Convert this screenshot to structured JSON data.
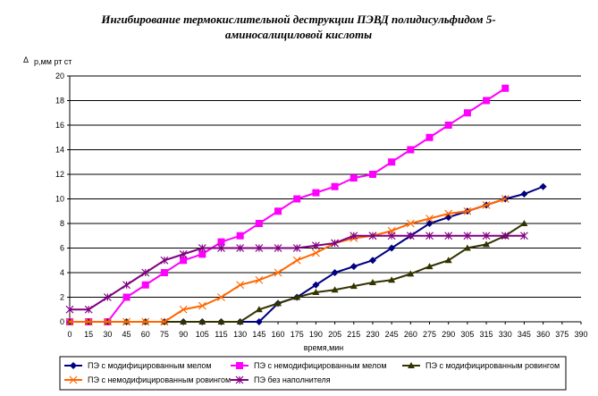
{
  "chart_data": {
    "type": "line",
    "title_line1": "Ингибирование термокислительной деструкции ПЭВД полидисульфидом 5-",
    "title_line2": "аминосалициловой кислоты",
    "ylabel_symbol": "Δ",
    "ylabel": "р,мм рт ст",
    "xlabel": "время,мин",
    "x": [
      0,
      15,
      30,
      45,
      60,
      75,
      90,
      105,
      115,
      130,
      145,
      160,
      175,
      190,
      205,
      215,
      230,
      245,
      260,
      275,
      290,
      305,
      315,
      330,
      345,
      360,
      375
    ],
    "x_ticks": [
      0,
      15,
      30,
      45,
      60,
      75,
      90,
      105,
      115,
      130,
      145,
      160,
      175,
      190,
      205,
      215,
      230,
      245,
      260,
      275,
      290,
      305,
      315,
      330,
      345,
      360,
      375,
      390
    ],
    "ylim": [
      0,
      20
    ],
    "y_ticks": [
      0,
      2,
      4,
      6,
      8,
      10,
      12,
      14,
      16,
      18,
      20
    ],
    "grid": "horizontal",
    "legend_position": "bottom",
    "series": [
      {
        "name": "ПЭ с модифицированным мелом",
        "color": "#000080",
        "marker": "diamond",
        "values": [
          0,
          0,
          0,
          0,
          0,
          0,
          0,
          0,
          0,
          0,
          0,
          1.5,
          2,
          3,
          4,
          4.5,
          5,
          6,
          7,
          8,
          8.5,
          9,
          9.5,
          10,
          10.4,
          11,
          null
        ]
      },
      {
        "name": "ПЭ с немодифицированным мелом",
        "color": "#ff00ff",
        "marker": "square",
        "values": [
          0,
          0,
          0,
          2,
          3,
          4,
          5,
          5.5,
          6.5,
          7,
          8,
          9,
          10,
          10.5,
          11,
          11.7,
          12,
          13,
          14,
          15,
          16,
          17,
          18,
          19,
          null,
          null,
          null
        ]
      },
      {
        "name": "ПЭ с модифицированным ровингом",
        "color": "#333300",
        "marker": "triangle",
        "values": [
          0,
          0,
          0,
          0,
          0,
          0,
          0,
          0,
          0,
          0,
          1,
          1.5,
          2,
          2.4,
          2.6,
          2.9,
          3.2,
          3.4,
          3.9,
          4.5,
          5,
          6,
          6.3,
          7,
          8,
          null,
          null
        ]
      },
      {
        "name": "ПЭ с немодифицированным ровингом",
        "color": "#ff6600",
        "marker": "x",
        "values": [
          0,
          0,
          0,
          0,
          0,
          0,
          1,
          1.3,
          2,
          3,
          3.4,
          4,
          5,
          5.6,
          6.4,
          6.8,
          7,
          7.4,
          8,
          8.4,
          8.8,
          9,
          9.5,
          10,
          null,
          null,
          null
        ]
      },
      {
        "name": "ПЭ без наполнителя",
        "color": "#800080",
        "marker": "star",
        "values": [
          1,
          1,
          2,
          3,
          4,
          5,
          5.5,
          6,
          6,
          6,
          6,
          6,
          6,
          6.2,
          6.4,
          7,
          7,
          7,
          7,
          7,
          7,
          7,
          7,
          7,
          7,
          null,
          null
        ]
      }
    ]
  }
}
